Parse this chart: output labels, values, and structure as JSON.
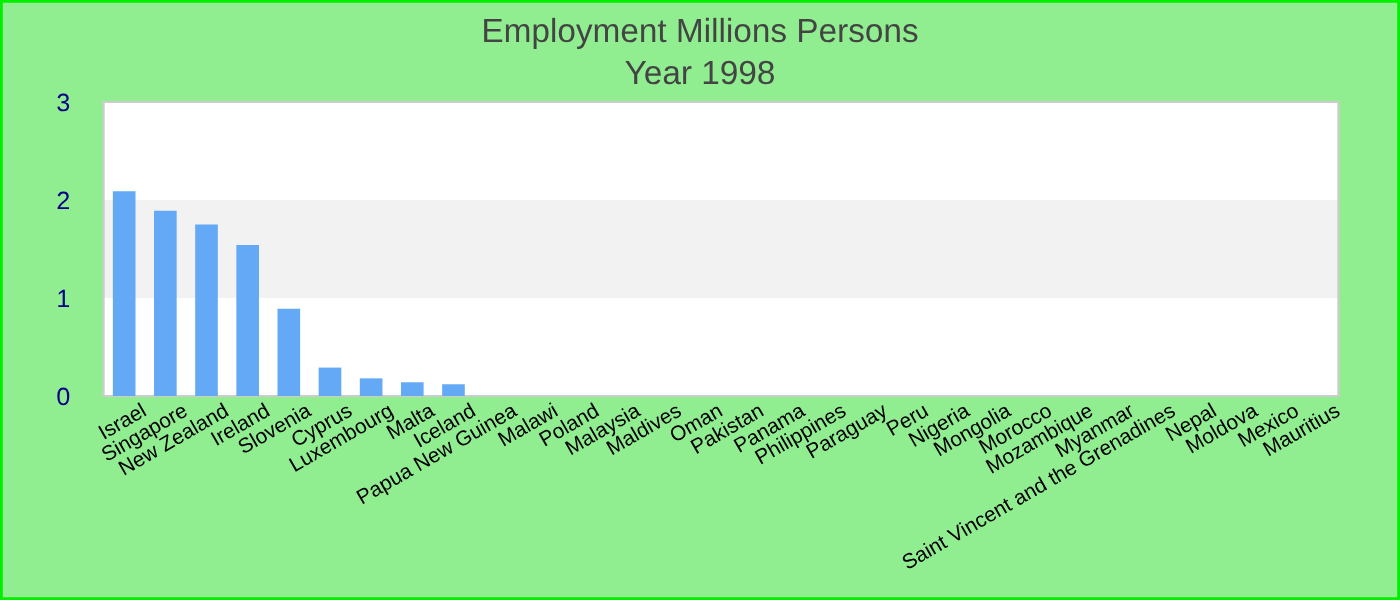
{
  "chart_data": {
    "type": "bar",
    "title": "Employment Millions Persons",
    "subtitle": "Year 1998",
    "categories": [
      "Israel",
      "Singapore",
      "New Zealand",
      "Ireland",
      "Slovenia",
      "Cyprus",
      "Luxembourg",
      "Malta",
      "Iceland",
      "Papua New Guinea",
      "Malawi",
      "Poland",
      "Malaysia",
      "Maldives",
      "Oman",
      "Pakistan",
      "Panama",
      "Philippines",
      "Paraguay",
      "Peru",
      "Nigeria",
      "Mongolia",
      "Morocco",
      "Mozambique",
      "Myanmar",
      "Saint Vincent and the Grenadines",
      "Nepal",
      "Moldova",
      "Mexico",
      "Mauritius"
    ],
    "values": [
      2.09,
      1.89,
      1.75,
      1.54,
      0.89,
      0.29,
      0.18,
      0.14,
      0.12,
      0,
      0,
      0,
      0,
      0,
      0,
      0,
      0,
      0,
      0,
      0,
      0,
      0,
      0,
      0,
      0,
      0,
      0,
      0,
      0,
      0
    ],
    "color": "#63a9f5",
    "ylim": [
      0,
      3
    ],
    "yticks": [
      0,
      1,
      2,
      3
    ],
    "bands": [
      {
        "axis": "y",
        "from": 1,
        "to": 2,
        "color": "#f2f2f2"
      }
    ],
    "legend": false
  }
}
